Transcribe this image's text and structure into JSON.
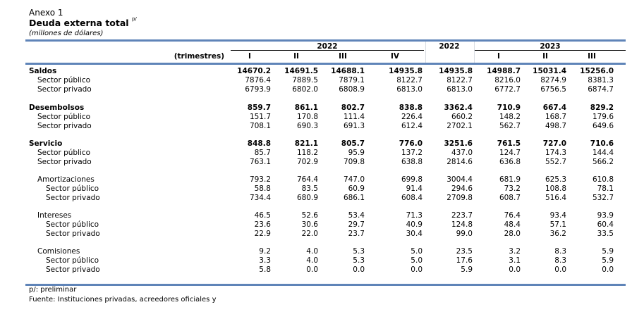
{
  "header": {
    "annex": "Anexo 1",
    "title": "Deuda externa total",
    "title_sup": "p/",
    "subtitle": "(millones de dólares)"
  },
  "columns": {
    "row_label": "(trimestres)",
    "groups": [
      {
        "label": "2022",
        "cols": [
          "I",
          "II",
          "III",
          "IV"
        ]
      },
      {
        "label": "2022",
        "cols": [
          ""
        ]
      },
      {
        "label": "2023",
        "cols": [
          "I",
          "II",
          "III"
        ]
      }
    ]
  },
  "rows": [
    {
      "label": "Saldos",
      "level": 0,
      "bold": true,
      "values": [
        "14670.2",
        "14691.5",
        "14688.1",
        "14935.8",
        "14935.8",
        "14988.7",
        "15031.4",
        "15256.0"
      ]
    },
    {
      "label": "Sector público",
      "level": 1,
      "bold": false,
      "values": [
        "7876.4",
        "7889.5",
        "7879.1",
        "8122.7",
        "8122.7",
        "8216.0",
        "8274.9",
        "8381.3"
      ]
    },
    {
      "label": "Sector privado",
      "level": 1,
      "bold": false,
      "values": [
        "6793.9",
        "6802.0",
        "6808.9",
        "6813.0",
        "6813.0",
        "6772.7",
        "6756.5",
        "6874.7"
      ]
    },
    {
      "label": "Desembolsos",
      "level": 0,
      "bold": true,
      "values": [
        "859.7",
        "861.1",
        "802.7",
        "838.8",
        "3362.4",
        "710.9",
        "667.4",
        "829.2"
      ]
    },
    {
      "label": "Sector público",
      "level": 1,
      "bold": false,
      "values": [
        "151.7",
        "170.8",
        "111.4",
        "226.4",
        "660.2",
        "148.2",
        "168.7",
        "179.6"
      ]
    },
    {
      "label": "Sector privado",
      "level": 1,
      "bold": false,
      "values": [
        "708.1",
        "690.3",
        "691.3",
        "612.4",
        "2702.1",
        "562.7",
        "498.7",
        "649.6"
      ]
    },
    {
      "label": "Servicio",
      "level": 0,
      "bold": true,
      "values": [
        "848.8",
        "821.1",
        "805.7",
        "776.0",
        "3251.6",
        "761.5",
        "727.0",
        "710.6"
      ]
    },
    {
      "label": "Sector público",
      "level": 1,
      "bold": false,
      "values": [
        "85.7",
        "118.2",
        "95.9",
        "137.2",
        "437.0",
        "124.7",
        "174.3",
        "144.4"
      ]
    },
    {
      "label": "Sector privado",
      "level": 1,
      "bold": false,
      "values": [
        "763.1",
        "702.9",
        "709.8",
        "638.8",
        "2814.6",
        "636.8",
        "552.7",
        "566.2"
      ]
    },
    {
      "label": "Amortizaciones",
      "level": 1,
      "bold": false,
      "values": [
        "793.2",
        "764.4",
        "747.0",
        "699.8",
        "3004.4",
        "681.9",
        "625.3",
        "610.8"
      ]
    },
    {
      "label": "Sector público",
      "level": 2,
      "bold": false,
      "values": [
        "58.8",
        "83.5",
        "60.9",
        "91.4",
        "294.6",
        "73.2",
        "108.8",
        "78.1"
      ]
    },
    {
      "label": "Sector privado",
      "level": 2,
      "bold": false,
      "values": [
        "734.4",
        "680.9",
        "686.1",
        "608.4",
        "2709.8",
        "608.7",
        "516.4",
        "532.7"
      ]
    },
    {
      "label": "Intereses",
      "level": 1,
      "bold": false,
      "values": [
        "46.5",
        "52.6",
        "53.4",
        "71.3",
        "223.7",
        "76.4",
        "93.4",
        "93.9"
      ]
    },
    {
      "label": "Sector público",
      "level": 2,
      "bold": false,
      "values": [
        "23.6",
        "30.6",
        "29.7",
        "40.9",
        "124.8",
        "48.4",
        "57.1",
        "60.4"
      ]
    },
    {
      "label": "Sector privado",
      "level": 2,
      "bold": false,
      "values": [
        "22.9",
        "22.0",
        "23.7",
        "30.4",
        "99.0",
        "28.0",
        "36.2",
        "33.5"
      ]
    },
    {
      "label": "Comisiones",
      "level": 1,
      "bold": false,
      "values": [
        "9.2",
        "4.0",
        "5.3",
        "5.0",
        "23.5",
        "3.2",
        "8.3",
        "5.9"
      ]
    },
    {
      "label": "Sector público",
      "level": 2,
      "bold": false,
      "values": [
        "3.3",
        "4.0",
        "5.3",
        "5.0",
        "17.6",
        "3.1",
        "8.3",
        "5.9"
      ]
    },
    {
      "label": "Sector privado",
      "level": 2,
      "bold": false,
      "values": [
        "5.8",
        "0.0",
        "0.0",
        "0.0",
        "5.9",
        "0.0",
        "0.0",
        "0.0"
      ]
    }
  ],
  "footer": {
    "note": "p/: preliminar",
    "source": "Fuente: Instituciones privadas, acreedores oficiales y"
  }
}
